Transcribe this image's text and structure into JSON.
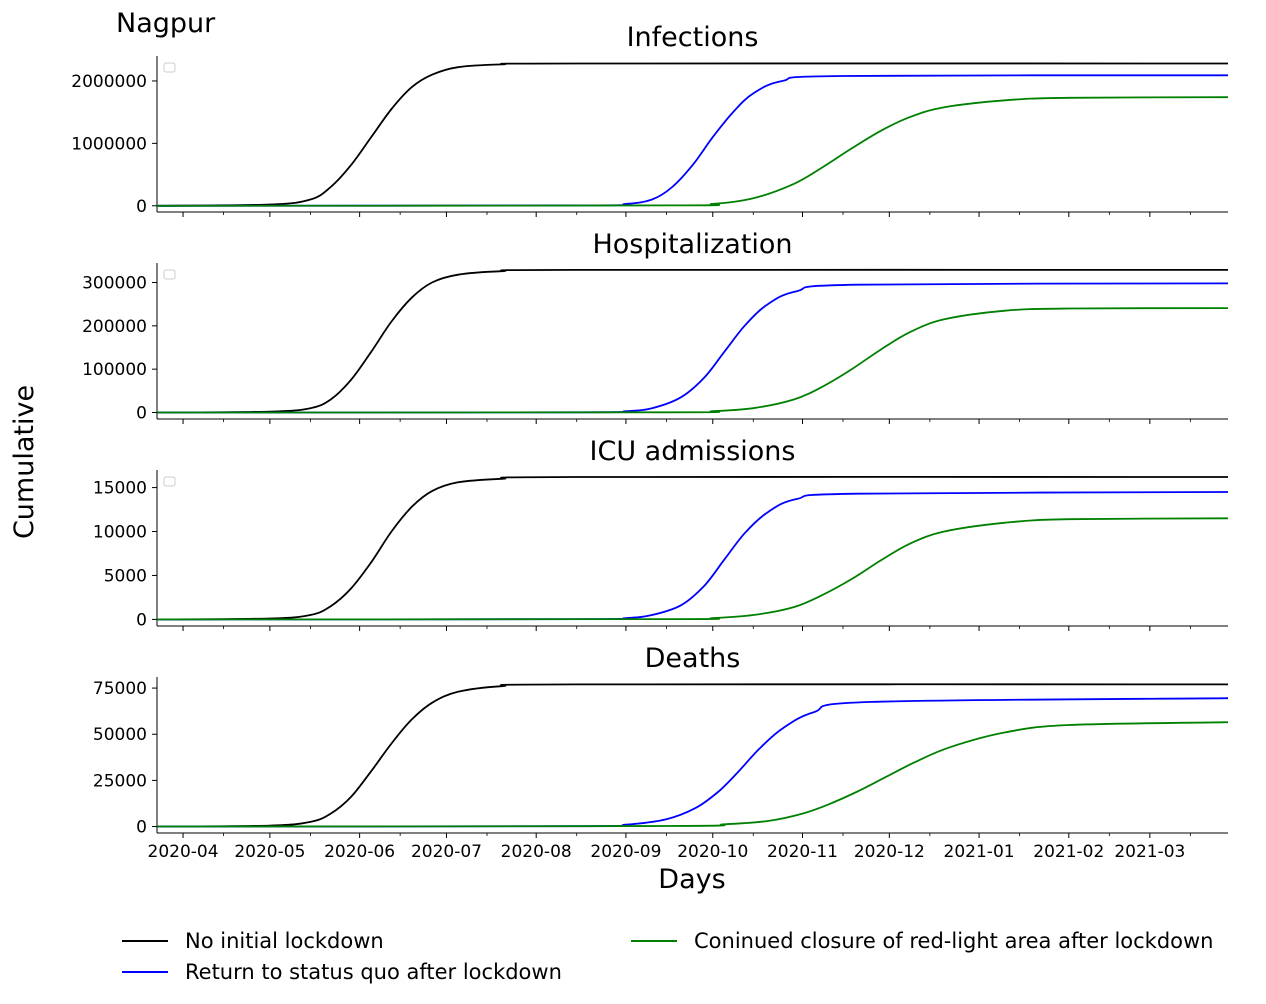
{
  "figure": {
    "city_label": "Nagpur",
    "ylabel": "Cumulative",
    "xlabel": "Days"
  },
  "legend": {
    "placement": "bottom",
    "entries": [
      {
        "label": "No initial lockdown",
        "color": "#000000"
      },
      {
        "label": "Return to status quo after lockdown",
        "color": "#0000ff"
      },
      {
        "label": "Coninued closure of red-light area after lockdown",
        "color": "#008000"
      }
    ]
  },
  "chart_data": [
    {
      "type": "line",
      "title": "Infections",
      "x_range": [
        "2020-03-23",
        "2021-03-28"
      ],
      "ylim": [
        -100000,
        2400000
      ],
      "yticks": [
        0,
        1000000,
        2000000
      ],
      "ytick_labels": [
        "0",
        "1000000",
        "2000000"
      ],
      "grid": false,
      "series": [
        {
          "name": "No initial lockdown",
          "color": "#000000",
          "x": [
            "2020-03-23",
            "2020-05-01",
            "2020-05-15",
            "2020-05-22",
            "2020-05-29",
            "2020-06-05",
            "2020-06-12",
            "2020-06-19",
            "2020-06-26",
            "2020-07-05",
            "2020-07-20",
            "2020-08-15",
            "2021-03-28"
          ],
          "y": [
            0,
            20000,
            100000,
            300000,
            650000,
            1100000,
            1550000,
            1900000,
            2100000,
            2220000,
            2265000,
            2280000,
            2280000
          ]
        },
        {
          "name": "Return to status quo after lockdown",
          "color": "#0000ff",
          "x": [
            "2020-03-23",
            "2020-08-15",
            "2020-09-01",
            "2020-09-10",
            "2020-09-17",
            "2020-09-24",
            "2020-10-01",
            "2020-10-08",
            "2020-10-15",
            "2020-10-25",
            "2020-11-15",
            "2021-03-28"
          ],
          "y": [
            0,
            5000,
            30000,
            100000,
            300000,
            650000,
            1100000,
            1500000,
            1800000,
            2000000,
            2080000,
            2090000
          ]
        },
        {
          "name": "Coninued closure of red-light area after lockdown",
          "color": "#008000",
          "x": [
            "2020-03-23",
            "2020-09-15",
            "2020-10-01",
            "2020-10-15",
            "2020-10-29",
            "2020-11-08",
            "2020-11-18",
            "2020-11-28",
            "2020-12-08",
            "2020-12-20",
            "2021-01-10",
            "2021-02-01",
            "2021-03-28"
          ],
          "y": [
            0,
            5000,
            30000,
            120000,
            350000,
            620000,
            920000,
            1200000,
            1420000,
            1580000,
            1690000,
            1730000,
            1740000
          ]
        }
      ]
    },
    {
      "type": "line",
      "title": "Hospitalization",
      "x_range": [
        "2020-03-23",
        "2021-03-28"
      ],
      "ylim": [
        -15000,
        345000
      ],
      "yticks": [
        0,
        100000,
        200000,
        300000
      ],
      "ytick_labels": [
        "0",
        "100000",
        "200000",
        "300000"
      ],
      "grid": false,
      "series": [
        {
          "name": "No initial lockdown",
          "color": "#000000",
          "x": [
            "2020-03-23",
            "2020-05-01",
            "2020-05-15",
            "2020-05-22",
            "2020-05-29",
            "2020-06-05",
            "2020-06-12",
            "2020-06-19",
            "2020-06-26",
            "2020-07-05",
            "2020-07-20",
            "2020-08-15",
            "2021-03-28"
          ],
          "y": [
            0,
            2000,
            10000,
            30000,
            75000,
            140000,
            210000,
            265000,
            300000,
            318000,
            326000,
            329000,
            329000
          ]
        },
        {
          "name": "Return to status quo after lockdown",
          "color": "#0000ff",
          "x": [
            "2020-03-23",
            "2020-08-15",
            "2020-09-01",
            "2020-09-10",
            "2020-09-20",
            "2020-09-28",
            "2020-10-05",
            "2020-10-12",
            "2020-10-20",
            "2020-10-30",
            "2020-11-20",
            "2021-03-28"
          ],
          "y": [
            0,
            500,
            3000,
            10000,
            35000,
            80000,
            140000,
            200000,
            250000,
            280000,
            295000,
            298000
          ]
        },
        {
          "name": "Coninued closure of red-light area after lockdown",
          "color": "#008000",
          "x": [
            "2020-03-23",
            "2020-09-15",
            "2020-10-01",
            "2020-10-15",
            "2020-10-29",
            "2020-11-08",
            "2020-11-18",
            "2020-11-28",
            "2020-12-08",
            "2020-12-20",
            "2021-01-10",
            "2021-02-01",
            "2021-03-28"
          ],
          "y": [
            0,
            500,
            3000,
            10000,
            30000,
            60000,
            100000,
            145000,
            185000,
            215000,
            235000,
            240000,
            241000
          ]
        }
      ]
    },
    {
      "type": "line",
      "title": "ICU admissions",
      "x_range": [
        "2020-03-23",
        "2021-03-28"
      ],
      "ylim": [
        -750,
        17000
      ],
      "yticks": [
        0,
        5000,
        10000,
        15000
      ],
      "ytick_labels": [
        "0",
        "5000",
        "10000",
        "15000"
      ],
      "grid": false,
      "series": [
        {
          "name": "No initial lockdown",
          "color": "#000000",
          "x": [
            "2020-03-23",
            "2020-05-01",
            "2020-05-15",
            "2020-05-22",
            "2020-05-29",
            "2020-06-05",
            "2020-06-12",
            "2020-06-19",
            "2020-06-26",
            "2020-07-05",
            "2020-07-20",
            "2020-08-15",
            "2021-03-28"
          ],
          "y": [
            0,
            100,
            500,
            1500,
            3500,
            6500,
            10000,
            12800,
            14600,
            15600,
            16000,
            16200,
            16200
          ]
        },
        {
          "name": "Return to status quo after lockdown",
          "color": "#0000ff",
          "x": [
            "2020-03-23",
            "2020-08-15",
            "2020-09-01",
            "2020-09-10",
            "2020-09-20",
            "2020-09-28",
            "2020-10-05",
            "2020-10-12",
            "2020-10-20",
            "2020-10-30",
            "2020-11-20",
            "2021-03-28"
          ],
          "y": [
            0,
            30,
            150,
            500,
            1600,
            3800,
            6800,
            9800,
            12200,
            13700,
            14300,
            14500
          ]
        },
        {
          "name": "Coninued closure of red-light area after lockdown",
          "color": "#008000",
          "x": [
            "2020-03-23",
            "2020-09-15",
            "2020-10-01",
            "2020-10-15",
            "2020-10-29",
            "2020-11-08",
            "2020-11-18",
            "2020-11-28",
            "2020-12-08",
            "2020-12-20",
            "2021-01-10",
            "2021-02-01",
            "2021-03-28"
          ],
          "y": [
            0,
            30,
            150,
            500,
            1400,
            2800,
            4600,
            6700,
            8600,
            10000,
            11000,
            11400,
            11500
          ]
        }
      ]
    },
    {
      "type": "line",
      "title": "Deaths",
      "x_range": [
        "2020-03-23",
        "2021-03-28"
      ],
      "ylim": [
        -3500,
        81000
      ],
      "yticks": [
        0,
        25000,
        50000,
        75000
      ],
      "ytick_labels": [
        "0",
        "25000",
        "50000",
        "75000"
      ],
      "xticks": [
        "2020-04-01",
        "2020-05-01",
        "2020-06-01",
        "2020-07-01",
        "2020-08-01",
        "2020-09-01",
        "2020-10-01",
        "2020-11-01",
        "2020-12-01",
        "2021-01-01",
        "2021-02-01",
        "2021-03-01"
      ],
      "xtick_labels": [
        "2020-04",
        "2020-05",
        "2020-06",
        "2020-07",
        "2020-08",
        "2020-09",
        "2020-10",
        "2020-11",
        "2020-12",
        "2021-01",
        "2021-02",
        "2021-03"
      ],
      "grid": false,
      "series": [
        {
          "name": "No initial lockdown",
          "color": "#000000",
          "x": [
            "2020-03-23",
            "2020-05-01",
            "2020-05-15",
            "2020-05-22",
            "2020-05-29",
            "2020-06-05",
            "2020-06-12",
            "2020-06-19",
            "2020-06-26",
            "2020-07-05",
            "2020-07-20",
            "2020-08-15",
            "2021-03-28"
          ],
          "y": [
            0,
            500,
            2500,
            7000,
            16000,
            30000,
            45000,
            58000,
            67000,
            73000,
            76000,
            77000,
            77000
          ]
        },
        {
          "name": "Return to status quo after lockdown",
          "color": "#0000ff",
          "x": [
            "2020-03-23",
            "2020-08-15",
            "2020-09-01",
            "2020-09-15",
            "2020-09-25",
            "2020-10-03",
            "2020-10-10",
            "2020-10-17",
            "2020-10-25",
            "2020-11-05",
            "2020-11-25",
            "2021-03-28"
          ],
          "y": [
            0,
            200,
            1000,
            4000,
            10000,
            19000,
            30000,
            42000,
            53000,
            62000,
            67500,
            69500
          ]
        },
        {
          "name": "Coninued closure of red-light area after lockdown",
          "color": "#008000",
          "x": [
            "2020-03-23",
            "2020-09-15",
            "2020-10-05",
            "2020-10-20",
            "2020-11-01",
            "2020-11-10",
            "2020-11-20",
            "2020-11-30",
            "2020-12-10",
            "2020-12-22",
            "2021-01-10",
            "2021-02-01",
            "2021-03-28"
          ],
          "y": [
            0,
            300,
            1200,
            3000,
            7000,
            12000,
            19000,
            27000,
            35000,
            43000,
            51000,
            55000,
            56500
          ]
        }
      ]
    }
  ]
}
